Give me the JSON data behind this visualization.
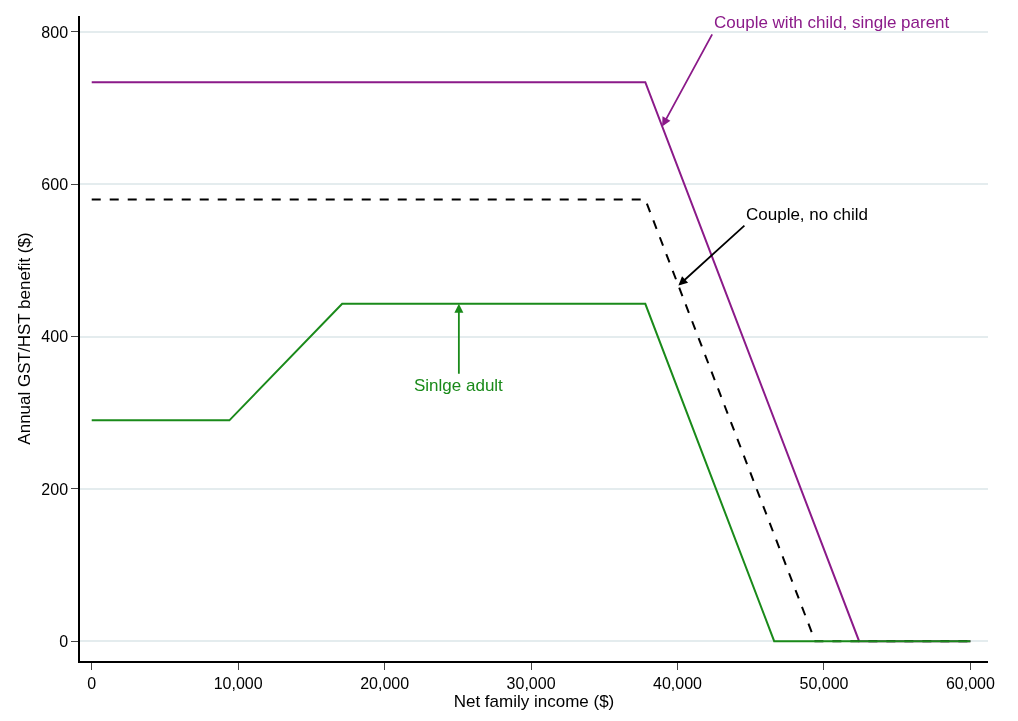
{
  "chart_data": {
    "type": "line",
    "xlabel": "Net family income ($)",
    "ylabel": "Annual GST/HST benefit ($)",
    "xlim": [
      -800,
      61200
    ],
    "ylim": [
      -26,
      821
    ],
    "xticks": [
      0,
      {
        "value": 10000,
        "label": "10,000"
      },
      {
        "value": 20000,
        "label": "20,000"
      },
      {
        "value": 30000,
        "label": "30,000"
      },
      {
        "value": 40000,
        "label": "40,000"
      },
      {
        "value": 50000,
        "label": "50,000"
      },
      {
        "value": 60000,
        "label": "60,000"
      }
    ],
    "yticks": [
      0,
      200,
      400,
      600,
      800
    ],
    "grid": "y",
    "marker": "none",
    "series": [
      {
        "color": "#8b1a89",
        "line_style": "solid",
        "x": [
          0,
          37800,
          52400,
          60000
        ],
        "values": [
          734,
          734,
          0,
          0
        ]
      },
      {
        "color": "#000000",
        "line_style": "dashed",
        "x": [
          0,
          37800,
          49400,
          60000
        ],
        "values": [
          580,
          580,
          0,
          0
        ]
      },
      {
        "color": "#1a8a1a",
        "line_style": "solid",
        "x": [
          0,
          9400,
          17100,
          37800,
          46600,
          60000
        ],
        "values": [
          290,
          290,
          443,
          443,
          0,
          0
        ]
      }
    ],
    "annotations": [
      {
        "text": "Couple with child, single parent",
        "x": 38950,
        "y": 676
      },
      {
        "text": "Couple, no child",
        "x": 40060,
        "y": 467
      },
      {
        "text": "Sinlge adult",
        "x": 25070,
        "y": 443
      }
    ]
  }
}
